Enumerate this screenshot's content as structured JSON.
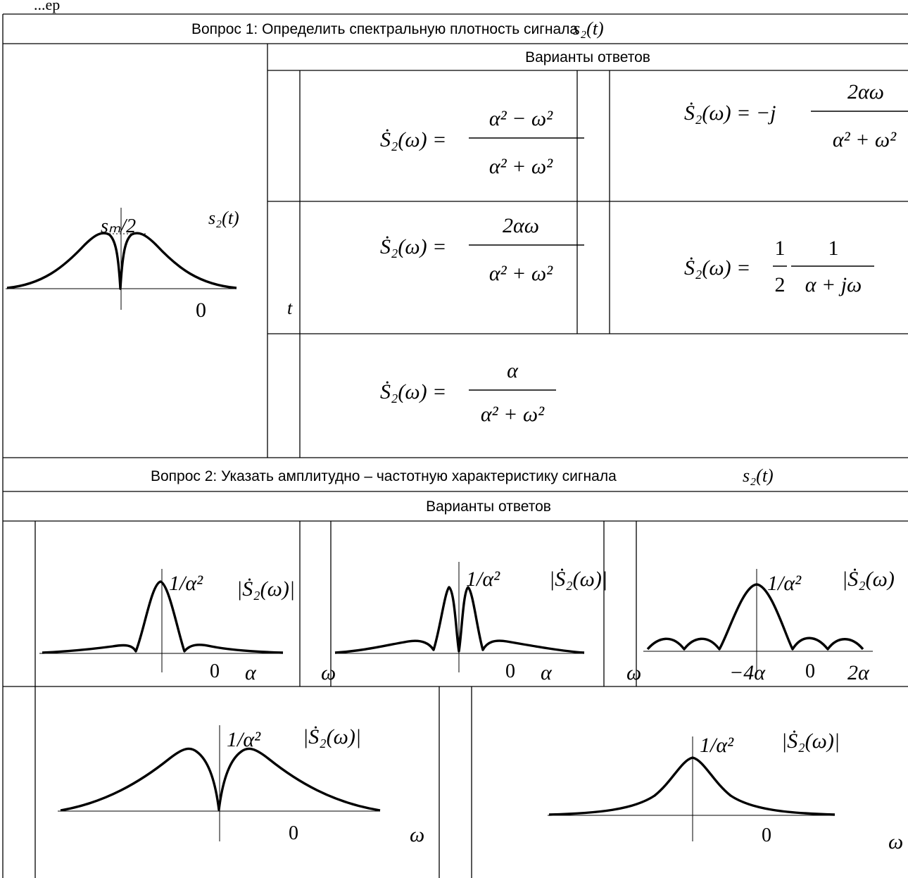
{
  "top_fragment": "...ер",
  "q1": {
    "title": "Вопрос 1: Определить спектральную плотность сигнала",
    "signal": "s₂(t)",
    "answers_header": "Варианты ответов",
    "signal_plot": {
      "ylabel": "s₂(t)",
      "peak_label": "sₘ/2",
      "xlabel": "t",
      "zero": "0"
    },
    "answers": [
      {
        "lhs": "Ṡ₂(ω) =",
        "num": "α² − ω²",
        "den": "α² + ω²"
      },
      {
        "lhs": "Ṡ₂(ω) = −j",
        "num": "2αω",
        "den": "α² + ω²"
      },
      {
        "lhs": "Ṡ₂(ω) =",
        "num": "2αω",
        "den": "α² + ω²"
      },
      {
        "lhs": "Ṡ₂(ω) =",
        "num1": "1",
        "den1": "2",
        "num2": "1",
        "den2": "α + jω"
      },
      {
        "lhs": "Ṡ₂(ω) =",
        "num": "α",
        "den": "α² + ω²"
      }
    ]
  },
  "q2": {
    "title": "Вопрос 2: Указать амплитудно – частотную характеристику сигнала",
    "signal": "s₂(t)",
    "answers_header": "Варианты ответов",
    "plots": [
      {
        "peak_label": "1/α²",
        "ylabel": "|Ṡ₂(ω)|",
        "zero": "0",
        "tick": "α",
        "xlabel": "ω"
      },
      {
        "peak_label": "1/α²",
        "ylabel": "|Ṡ₂(ω)|",
        "zero": "0",
        "tick": "α",
        "xlabel": "ω"
      },
      {
        "peak_label": "1/α²",
        "ylabel": "|Ṡ₂(ω)",
        "zero": "0",
        "tick_left": "−4α",
        "tick_right": "2α"
      },
      {
        "peak_label": "1/α²",
        "ylabel": "|Ṡ₂(ω)|",
        "zero": "0",
        "xlabel": "ω"
      },
      {
        "peak_label": "1/α²",
        "ylabel": "|Ṡ₂(ω)|",
        "zero": "0",
        "xlabel": "ω"
      }
    ]
  }
}
